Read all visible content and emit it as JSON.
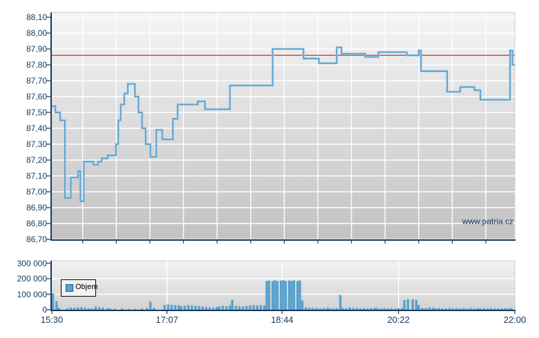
{
  "watermark": "www.patria.cz",
  "legend": {
    "label": "Objem"
  },
  "colors": {
    "accent_line": "#58a0cd",
    "line_halo": "#b3d3ea",
    "bar": "#58a2ce",
    "reference_line": "#d23b2f",
    "axis": "#17375e",
    "grid": "#ffffff",
    "plot_bg_top": "#f5f5f5",
    "plot_bg_bottom": "#c2c2c2",
    "vol_bg_top": "#f2f2f2",
    "vol_bg_bottom": "#d3d3d3",
    "plot_edge": "#cccccc"
  },
  "chart_data": [
    {
      "type": "line",
      "name": "price",
      "x_axis": {
        "tick_labels": [
          "15:30",
          "17:07",
          "18:44",
          "20:22",
          "22:00"
        ],
        "tick_minutes": [
          0,
          97,
          194,
          292,
          390
        ],
        "range_minutes": [
          0,
          390
        ],
        "minor_grid": {
          "start_min": 26,
          "step_min": 28.3,
          "count": 13
        }
      },
      "y_axis": {
        "min": 86.7,
        "max": 88.1,
        "step": 0.1,
        "tick_labels": [
          "88,10",
          "88,00",
          "87,90",
          "87,80",
          "87,70",
          "87,60",
          "87,50",
          "87,40",
          "87,30",
          "87,20",
          "87,10",
          "87,00",
          "86,90",
          "86,80",
          "86,70"
        ],
        "tick_values": [
          88.1,
          88.0,
          87.9,
          87.8,
          87.7,
          87.6,
          87.5,
          87.4,
          87.3,
          87.2,
          87.1,
          87.0,
          86.9,
          86.8,
          86.7
        ]
      },
      "reference_line": 87.86,
      "grid": true,
      "legend_position": "none",
      "series": [
        {
          "name": "price",
          "step": true,
          "points": [
            [
              0,
              87.54
            ],
            [
              3,
              87.5
            ],
            [
              7,
              87.45
            ],
            [
              11,
              86.96
            ],
            [
              16,
              87.09
            ],
            [
              22,
              87.13
            ],
            [
              24,
              86.94
            ],
            [
              27,
              87.19
            ],
            [
              35,
              87.17
            ],
            [
              39,
              87.19
            ],
            [
              42,
              87.21
            ],
            [
              47,
              87.23
            ],
            [
              54,
              87.3
            ],
            [
              56,
              87.45
            ],
            [
              58,
              87.55
            ],
            [
              61,
              87.62
            ],
            [
              64,
              87.68
            ],
            [
              70,
              87.6
            ],
            [
              73,
              87.5
            ],
            [
              76,
              87.4
            ],
            [
              79,
              87.3
            ],
            [
              83,
              87.22
            ],
            [
              88,
              87.39
            ],
            [
              93,
              87.33
            ],
            [
              102,
              87.46
            ],
            [
              106,
              87.55
            ],
            [
              123,
              87.57
            ],
            [
              129,
              87.52
            ],
            [
              150,
              87.67
            ],
            [
              186,
              87.9
            ],
            [
              212,
              87.84
            ],
            [
              225,
              87.81
            ],
            [
              240,
              87.91
            ],
            [
              244,
              87.87
            ],
            [
              264,
              87.85
            ],
            [
              275,
              87.88
            ],
            [
              299,
              87.86
            ],
            [
              309,
              87.89
            ],
            [
              311,
              87.76
            ],
            [
              333,
              87.63
            ],
            [
              344,
              87.66
            ],
            [
              356,
              87.64
            ],
            [
              361,
              87.58
            ],
            [
              386,
              87.89
            ],
            [
              388,
              87.8
            ],
            [
              390,
              87.8
            ]
          ]
        }
      ]
    },
    {
      "type": "bar",
      "name": "volume",
      "y_axis": {
        "min": 0,
        "max": 300000,
        "step": 100000,
        "tick_labels": [
          "300 000",
          "200 000",
          "100 000",
          "0"
        ],
        "tick_values": [
          300000,
          200000,
          100000,
          0
        ]
      },
      "grid": true,
      "legend_position": "top-left",
      "series": [
        {
          "name": "Objem",
          "points": [
            [
              1,
              105000
            ],
            [
              4,
              55000
            ],
            [
              6,
              12000
            ],
            [
              13,
              8000
            ],
            [
              16,
              14000
            ],
            [
              19,
              12000
            ],
            [
              22,
              15000
            ],
            [
              25,
              18000
            ],
            [
              28,
              12000
            ],
            [
              31,
              10000
            ],
            [
              34,
              8000
            ],
            [
              37,
              20000
            ],
            [
              40,
              16000
            ],
            [
              43,
              14000
            ],
            [
              47,
              10000
            ],
            [
              49,
              8000
            ],
            [
              53,
              6000
            ],
            [
              59,
              8000
            ],
            [
              65,
              5000
            ],
            [
              70,
              5000
            ],
            [
              76,
              8000
            ],
            [
              80,
              10000
            ],
            [
              83,
              52000
            ],
            [
              86,
              12000
            ],
            [
              95,
              30000
            ],
            [
              98,
              34000
            ],
            [
              101,
              32000
            ],
            [
              104,
              30000
            ],
            [
              107,
              28000
            ],
            [
              109,
              22000
            ],
            [
              112,
              26000
            ],
            [
              115,
              30000
            ],
            [
              118,
              28000
            ],
            [
              121,
              25000
            ],
            [
              124,
              24000
            ],
            [
              127,
              20000
            ],
            [
              130,
              18000
            ],
            [
              133,
              15000
            ],
            [
              136,
              14000
            ],
            [
              139,
              18000
            ],
            [
              141,
              20000
            ],
            [
              144,
              25000
            ],
            [
              147,
              22000
            ],
            [
              150,
              28000
            ],
            [
              152,
              65000
            ],
            [
              155,
              25000
            ],
            [
              158,
              22000
            ],
            [
              161,
              20000
            ],
            [
              164,
              25000
            ],
            [
              167,
              28000
            ],
            [
              170,
              30000
            ],
            [
              173,
              28000
            ],
            [
              176,
              30000
            ],
            [
              179,
              28000
            ],
            [
              181,
              185000
            ],
            [
              183,
              188000
            ],
            [
              186,
              185000
            ],
            [
              188,
              190000
            ],
            [
              190,
              185000
            ],
            [
              193,
              188000
            ],
            [
              195,
              190000
            ],
            [
              197,
              185000
            ],
            [
              200,
              188000
            ],
            [
              202,
              185000
            ],
            [
              204,
              190000
            ],
            [
              207,
              185000
            ],
            [
              209,
              188000
            ],
            [
              211,
              60000
            ],
            [
              214,
              15000
            ],
            [
              217,
              12000
            ],
            [
              220,
              10000
            ],
            [
              223,
              12000
            ],
            [
              226,
              8000
            ],
            [
              229,
              10000
            ],
            [
              232,
              12000
            ],
            [
              234,
              10000
            ],
            [
              237,
              8000
            ],
            [
              240,
              10000
            ],
            [
              243,
              95000
            ],
            [
              245,
              12000
            ],
            [
              248,
              10000
            ],
            [
              251,
              15000
            ],
            [
              254,
              12000
            ],
            [
              257,
              10000
            ],
            [
              260,
              8000
            ],
            [
              263,
              10000
            ],
            [
              266,
              8000
            ],
            [
              269,
              10000
            ],
            [
              272,
              12000
            ],
            [
              274,
              10000
            ],
            [
              277,
              8000
            ],
            [
              280,
              10000
            ],
            [
              283,
              8000
            ],
            [
              286,
              10000
            ],
            [
              289,
              8000
            ],
            [
              292,
              10000
            ],
            [
              295,
              12000
            ],
            [
              297,
              62000
            ],
            [
              300,
              68000
            ],
            [
              304,
              66000
            ],
            [
              307,
              64000
            ],
            [
              309,
              30000
            ],
            [
              312,
              12000
            ],
            [
              315,
              10000
            ],
            [
              318,
              15000
            ],
            [
              321,
              12000
            ],
            [
              323,
              10000
            ],
            [
              326,
              12000
            ],
            [
              329,
              10000
            ],
            [
              332,
              8000
            ],
            [
              335,
              10000
            ],
            [
              338,
              8000
            ],
            [
              341,
              10000
            ],
            [
              344,
              8000
            ],
            [
              347,
              10000
            ],
            [
              350,
              8000
            ],
            [
              353,
              10000
            ],
            [
              356,
              8000
            ],
            [
              359,
              10000
            ],
            [
              361,
              8000
            ],
            [
              364,
              10000
            ],
            [
              367,
              8000
            ],
            [
              370,
              10000
            ],
            [
              373,
              8000
            ],
            [
              376,
              10000
            ],
            [
              379,
              8000
            ],
            [
              382,
              10000
            ],
            [
              385,
              8000
            ],
            [
              387,
              10000
            ]
          ]
        }
      ]
    }
  ]
}
